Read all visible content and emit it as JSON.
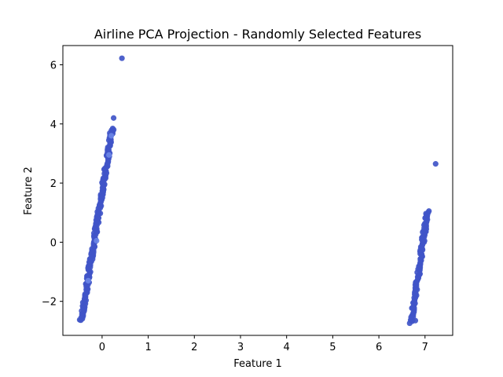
{
  "chart_data": {
    "type": "scatter",
    "title": "Airline PCA Projection - Randomly Selected Features",
    "xlabel": "Feature 1",
    "ylabel": "Feature 2",
    "xlim": [
      -0.85,
      7.6
    ],
    "ylim": [
      -3.15,
      6.65
    ],
    "xticks": [
      0,
      1,
      2,
      3,
      4,
      5,
      6,
      7
    ],
    "yticks": [
      -2,
      0,
      2,
      4,
      6
    ],
    "ytick_labels": [
      "−2",
      "0",
      "2",
      "4",
      "6"
    ],
    "grid": false,
    "colors": {
      "points": "#4055c8",
      "highlight": "#6a86e6"
    },
    "clusters": [
      {
        "x0": -0.45,
        "y0": -2.65,
        "x1": 0.22,
        "y1": 3.85,
        "count": 220
      },
      {
        "x0": 6.7,
        "y0": -2.72,
        "x1": 7.05,
        "y1": 1.05,
        "count": 120
      }
    ],
    "outliers": [
      {
        "x": 0.43,
        "y": 6.22
      },
      {
        "x": 0.25,
        "y": 4.2
      },
      {
        "x": 7.23,
        "y": 2.65
      },
      {
        "x": 6.79,
        "y": -2.65
      }
    ],
    "highlights": [
      {
        "x": -0.12,
        "y": 0.05
      },
      {
        "x": 0.15,
        "y": 2.95
      },
      {
        "x": 0.2,
        "y": 3.6
      },
      {
        "x": -0.3,
        "y": -1.3
      }
    ]
  }
}
